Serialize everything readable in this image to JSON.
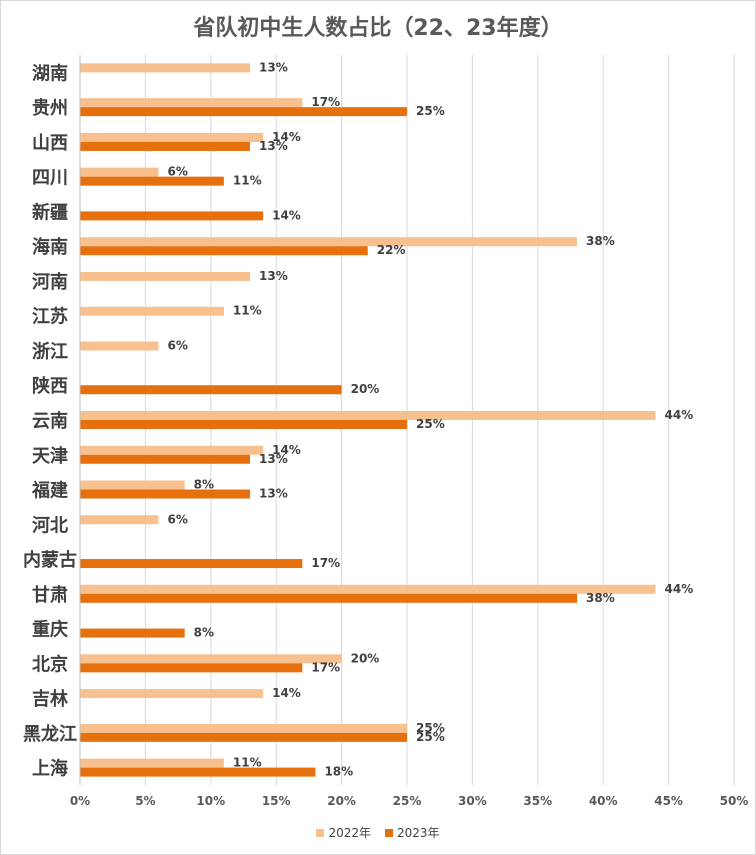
{
  "chart_data": {
    "type": "bar",
    "orientation": "horizontal",
    "title": "省队初中生人数占比（22、23年度）",
    "categories": [
      "湖南",
      "贵州",
      "山西",
      "四川",
      "新疆",
      "海南",
      "河南",
      "江苏",
      "浙江",
      "陕西",
      "云南",
      "天津",
      "福建",
      "河北",
      "内蒙古",
      "甘肃",
      "重庆",
      "北京",
      "吉林",
      "黑龙江",
      "上海"
    ],
    "series": [
      {
        "name": "2022年",
        "color": "#F8BF8F",
        "values": [
          13,
          17,
          14,
          6,
          null,
          38,
          13,
          11,
          6,
          null,
          44,
          14,
          8,
          6,
          null,
          44,
          null,
          20,
          14,
          25,
          11
        ],
        "labels": [
          "13%",
          "17%",
          "14%",
          "6%",
          "",
          "38%",
          "13%",
          "11%",
          "6%",
          "",
          "44%",
          "14%",
          "8%",
          "6%",
          "",
          "44%",
          "",
          "20%",
          "14%",
          "25%",
          "11%"
        ]
      },
      {
        "name": "2023年",
        "color": "#E66F0E",
        "values": [
          null,
          25,
          13,
          11,
          14,
          22,
          null,
          null,
          null,
          20,
          25,
          13,
          13,
          null,
          17,
          38,
          8,
          17,
          null,
          25,
          18
        ],
        "labels": [
          "",
          "25%",
          "13%",
          "11%",
          "14%",
          "22%",
          "",
          "",
          "",
          "20%",
          "25%",
          "13%",
          "13%",
          "",
          "17%",
          "38%",
          "8%",
          "17%",
          "",
          "25%",
          "18%"
        ]
      }
    ],
    "x_ticks": [
      "0%",
      "5%",
      "10%",
      "15%",
      "20%",
      "25%",
      "30%",
      "35%",
      "40%",
      "45%",
      "50%"
    ],
    "xlim": [
      0,
      50
    ],
    "grid": true,
    "legend_position": "bottom"
  }
}
